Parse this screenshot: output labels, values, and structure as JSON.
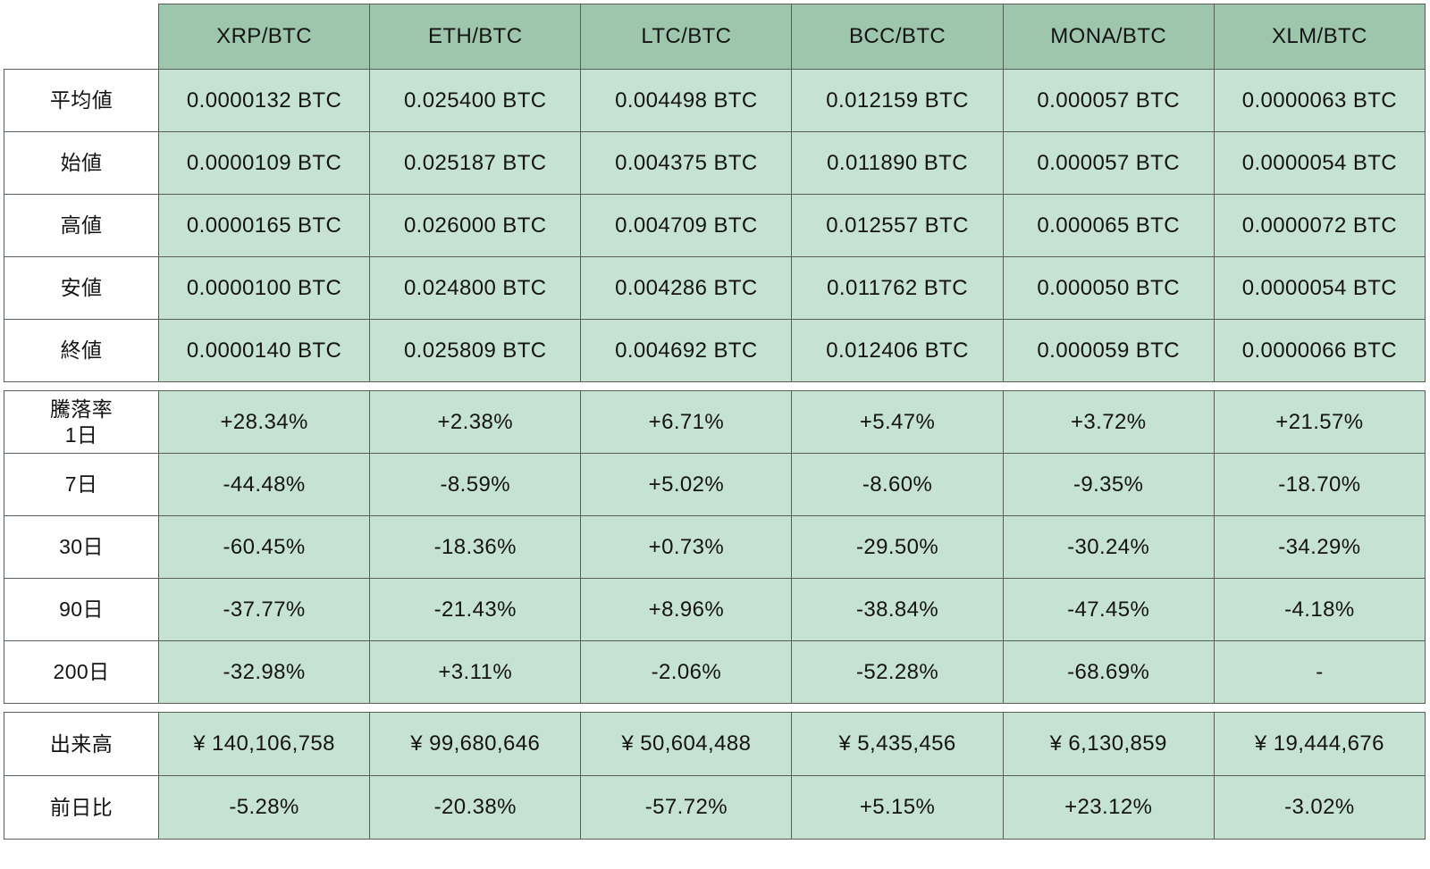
{
  "chart_data": {
    "type": "table",
    "columns": [
      "XRP/BTC",
      "ETH/BTC",
      "LTC/BTC",
      "BCC/BTC",
      "MONA/BTC",
      "XLM/BTC"
    ],
    "sections": {
      "prices": {
        "rows": [
          {
            "label": "平均値",
            "values": [
              "0.0000132 BTC",
              "0.025400 BTC",
              "0.004498 BTC",
              "0.012159 BTC",
              "0.000057 BTC",
              "0.0000063 BTC"
            ]
          },
          {
            "label": "始値",
            "values": [
              "0.0000109 BTC",
              "0.025187 BTC",
              "0.004375 BTC",
              "0.011890 BTC",
              "0.000057 BTC",
              "0.0000054 BTC"
            ]
          },
          {
            "label": "高値",
            "values": [
              "0.0000165 BTC",
              "0.026000 BTC",
              "0.004709 BTC",
              "0.012557 BTC",
              "0.000065 BTC",
              "0.0000072 BTC"
            ]
          },
          {
            "label": "安値",
            "values": [
              "0.0000100 BTC",
              "0.024800 BTC",
              "0.004286 BTC",
              "0.011762 BTC",
              "0.000050 BTC",
              "0.0000054 BTC"
            ]
          },
          {
            "label": "終値",
            "values": [
              "0.0000140 BTC",
              "0.025809 BTC",
              "0.004692 BTC",
              "0.012406 BTC",
              "0.000059 BTC",
              "0.0000066 BTC"
            ]
          }
        ]
      },
      "changes": {
        "rows": [
          {
            "label": "騰落率\n1日",
            "values": [
              "+28.34%",
              "+2.38%",
              "+6.71%",
              "+5.47%",
              "+3.72%",
              "+21.57%"
            ]
          },
          {
            "label": "7日",
            "values": [
              "-44.48%",
              "-8.59%",
              "+5.02%",
              "-8.60%",
              "-9.35%",
              "-18.70%"
            ]
          },
          {
            "label": "30日",
            "values": [
              "-60.45%",
              "-18.36%",
              "+0.73%",
              "-29.50%",
              "-30.24%",
              "-34.29%"
            ]
          },
          {
            "label": "90日",
            "values": [
              "-37.77%",
              "-21.43%",
              "+8.96%",
              "-38.84%",
              "-47.45%",
              "-4.18%"
            ]
          },
          {
            "label": "200日",
            "values": [
              "-32.98%",
              "+3.11%",
              "-2.06%",
              "-52.28%",
              "-68.69%",
              "-"
            ]
          }
        ]
      },
      "volume": {
        "rows": [
          {
            "label": "出来高",
            "values": [
              "¥ 140,106,758",
              "¥ 99,680,646",
              "¥ 50,604,488",
              "¥ 5,435,456",
              "¥ 6,130,859",
              "¥ 19,444,676"
            ]
          },
          {
            "label": "前日比",
            "values": [
              "-5.28%",
              "-20.38%",
              "-57.72%",
              "+5.15%",
              "+23.12%",
              "-3.02%"
            ]
          }
        ]
      }
    },
    "colors": {
      "header_bg": "#9dc6ac",
      "cell_bg": "#c6e2d3",
      "label_bg": "#ffffff",
      "border": "#575f59",
      "text": "#141414"
    },
    "layout": {
      "grid": "on",
      "legend": "none"
    }
  }
}
